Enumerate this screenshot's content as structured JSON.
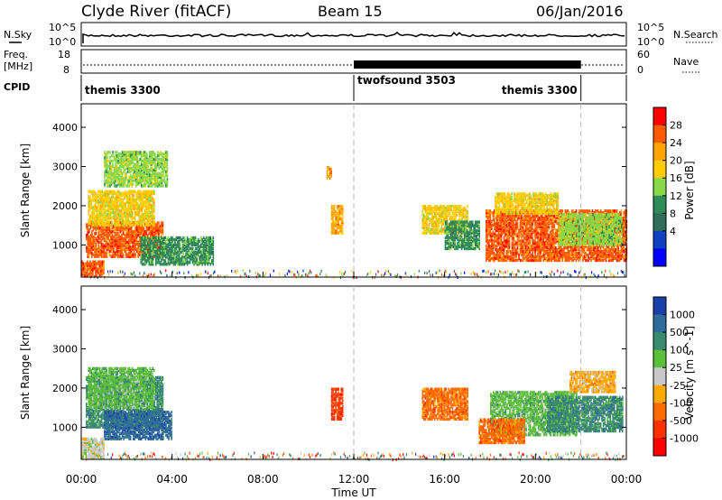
{
  "header": {
    "title": "Clyde River (fitACF)",
    "beam": "Beam 15",
    "date": "06/Jan/2016"
  },
  "noise_panel": {
    "left_label": "N.Sky",
    "left_top": "10^5",
    "left_bottom": "10^0",
    "right_top": "10^5",
    "right_bottom": "10^0",
    "right_label": "N.Search"
  },
  "freq_panel": {
    "label_line1": "Freq.",
    "label_line2": "[MHz]",
    "left_top": "18",
    "left_bottom": "8",
    "right_top": "60",
    "right_bottom": "0",
    "right_label": "Nave"
  },
  "cpid_panel": {
    "label": "CPID",
    "segments": [
      {
        "name": "themis 3300",
        "start": 0,
        "end": 12
      },
      {
        "name": "twofsound 3503",
        "start": 12,
        "end": 22
      },
      {
        "name": "themis 3300",
        "start": 22,
        "end": 24
      }
    ]
  },
  "x_axis": {
    "label": "Time UT",
    "ticks": [
      "00:00",
      "04:00",
      "08:00",
      "12:00",
      "16:00",
      "20:00",
      "00:00"
    ]
  },
  "chart_data": [
    {
      "type": "heatmap",
      "panel": "power",
      "ylabel": "Slant Range [km]",
      "ylim": [
        180,
        4600
      ],
      "yticks": [
        1000,
        2000,
        3000,
        4000
      ],
      "xlim": [
        0,
        24
      ],
      "colorbar": {
        "label": "Power [dB]",
        "ticks": [
          "28",
          "24",
          "20",
          "16",
          "12",
          "8",
          "4"
        ],
        "colors": [
          "#ff0000",
          "#ff5a00",
          "#ffa500",
          "#ffcc00",
          "#88d848",
          "#2e8b57",
          "#2f6e5a",
          "#1040c0",
          "#0000ff"
        ]
      },
      "patches": [
        {
          "t": [
            0.2,
            3.6
          ],
          "r": [
            700,
            1600
          ],
          "value": 28
        },
        {
          "t": [
            0.3,
            3.2
          ],
          "r": [
            1500,
            2400
          ],
          "value": 18
        },
        {
          "t": [
            1.0,
            3.8
          ],
          "r": [
            2500,
            3400
          ],
          "value": 16
        },
        {
          "t": [
            2.6,
            5.8
          ],
          "r": [
            500,
            1200
          ],
          "value": 12
        },
        {
          "t": [
            0.0,
            1.0
          ],
          "r": [
            200,
            600
          ],
          "value": 28
        },
        {
          "t": [
            10.8,
            11.0
          ],
          "r": [
            2700,
            3000
          ],
          "value": 24
        },
        {
          "t": [
            11.0,
            11.5
          ],
          "r": [
            1300,
            2000
          ],
          "value": 24
        },
        {
          "t": [
            15.0,
            17.0
          ],
          "r": [
            1300,
            2000
          ],
          "value": 20
        },
        {
          "t": [
            16.0,
            17.5
          ],
          "r": [
            900,
            1600
          ],
          "value": 12
        },
        {
          "t": [
            17.8,
            24.0
          ],
          "r": [
            600,
            1900
          ],
          "value": 28
        },
        {
          "t": [
            18.2,
            21.0
          ],
          "r": [
            1800,
            2300
          ],
          "value": 20
        },
        {
          "t": [
            21.0,
            23.8
          ],
          "r": [
            1000,
            1800
          ],
          "value": 16
        }
      ]
    },
    {
      "type": "heatmap",
      "panel": "velocity",
      "ylabel": "Slant Range [km]",
      "ylim": [
        180,
        4600
      ],
      "yticks": [
        1000,
        2000,
        3000,
        4000
      ],
      "xlim": [
        0,
        24
      ],
      "colorbar": {
        "label": "Velocity [m s^-1]",
        "ticks": [
          "1000",
          "500",
          "100",
          "25",
          "-25",
          "-100",
          "-500",
          "-1000"
        ],
        "colors": [
          "#1a3fa8",
          "#2e6b9a",
          "#3a8a70",
          "#5cbf3a",
          "#c8c8c8",
          "#ffaa00",
          "#ff6a00",
          "#ff3000",
          "#ff0000"
        ]
      },
      "patches": [
        {
          "t": [
            0.2,
            3.6
          ],
          "r": [
            1000,
            2300
          ],
          "value": 500
        },
        {
          "t": [
            1.0,
            4.0
          ],
          "r": [
            700,
            1400
          ],
          "value": 1000
        },
        {
          "t": [
            0.3,
            3.2
          ],
          "r": [
            1500,
            2500
          ],
          "value": 100
        },
        {
          "t": [
            0.0,
            1.0
          ],
          "r": [
            200,
            700
          ],
          "value": 25
        },
        {
          "t": [
            11.0,
            11.5
          ],
          "r": [
            1200,
            2000
          ],
          "value": -500
        },
        {
          "t": [
            15.0,
            17.0
          ],
          "r": [
            1200,
            2000
          ],
          "value": -100
        },
        {
          "t": [
            18.0,
            21.8
          ],
          "r": [
            800,
            1900
          ],
          "value": 100
        },
        {
          "t": [
            20.5,
            23.8
          ],
          "r": [
            900,
            1800
          ],
          "value": 500
        },
        {
          "t": [
            21.5,
            23.5
          ],
          "r": [
            1900,
            2400
          ],
          "value": -25
        },
        {
          "t": [
            17.5,
            19.5
          ],
          "r": [
            600,
            1200
          ],
          "value": -100
        }
      ]
    }
  ]
}
